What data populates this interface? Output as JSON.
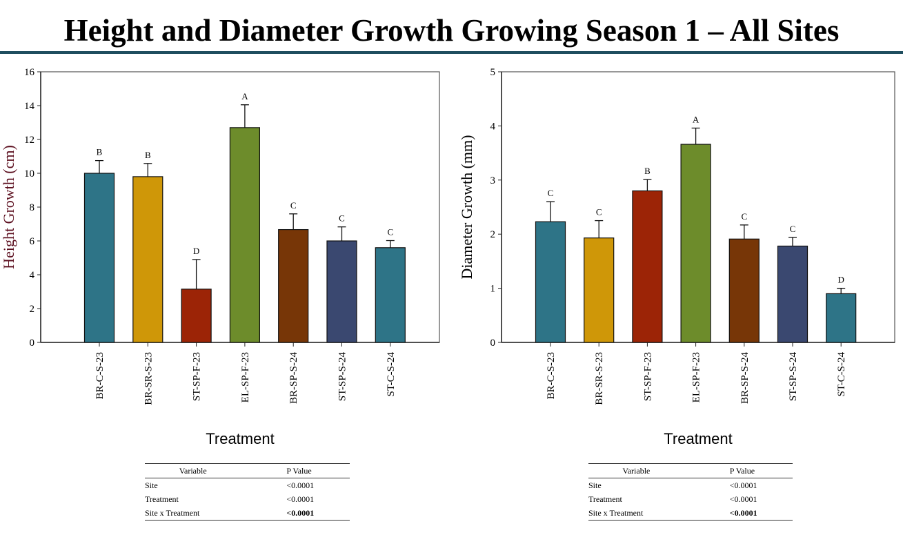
{
  "title": "Height and Diameter Growth Growing Season 1 – All Sites",
  "colors": {
    "rule": "#1f4e5f"
  },
  "chart_data": [
    {
      "type": "bar",
      "categories": [
        "BR-C-S-23",
        "BR-SR-S-23",
        "ST-SP-F-23",
        "EL-SP-F-23",
        "BR-SP-S-24",
        "ST-SP-S-24",
        "ST-C-S-24"
      ],
      "values": [
        10.0,
        9.8,
        3.15,
        12.7,
        6.67,
        6.0,
        5.6
      ],
      "errors": [
        0.75,
        0.78,
        1.75,
        1.35,
        0.93,
        0.83,
        0.42
      ],
      "letters": [
        "B",
        "B",
        "D",
        "A",
        "C",
        "C",
        "C"
      ],
      "colors": [
        "#2e7487",
        "#cf9708",
        "#9c2406",
        "#6d8c2b",
        "#773607",
        "#3a4870",
        "#2e7487"
      ],
      "xlabel": "Treatment",
      "ylabel": "Height Growth (cm)",
      "ylabel_color": "#5c0f1f",
      "ylim": [
        0,
        16
      ],
      "yticks": [
        0,
        2,
        4,
        6,
        8,
        10,
        12,
        14,
        16
      ],
      "grid": false
    },
    {
      "type": "bar",
      "categories": [
        "BR-C-S-23",
        "BR-SR-S-23",
        "ST-SP-F-23",
        "EL-SP-F-23",
        "BR-SP-S-24",
        "ST-SP-S-24",
        "ST-C-S-24"
      ],
      "values": [
        2.23,
        1.93,
        2.8,
        3.66,
        1.91,
        1.78,
        0.9
      ],
      "errors": [
        0.37,
        0.32,
        0.21,
        0.3,
        0.26,
        0.16,
        0.1
      ],
      "letters": [
        "C",
        "C",
        "B",
        "A",
        "C",
        "C",
        "D"
      ],
      "colors": [
        "#2e7487",
        "#cf9708",
        "#9c2406",
        "#6d8c2b",
        "#773607",
        "#3a4870",
        "#2e7487"
      ],
      "xlabel": "Treatment",
      "ylabel": "Diameter Growth (mm)",
      "ylabel_color": "#000000",
      "ylim": [
        0,
        5
      ],
      "yticks": [
        0,
        1,
        2,
        3,
        4,
        5
      ],
      "grid": false
    }
  ],
  "tables": [
    {
      "headers": [
        "Variable",
        "P Value"
      ],
      "rows": [
        [
          "Site",
          "<0.0001"
        ],
        [
          "Treatment",
          "<0.0001"
        ],
        [
          "Site x Treatment",
          "<0.0001"
        ]
      ]
    },
    {
      "headers": [
        "Variable",
        "P Value"
      ],
      "rows": [
        [
          "Site",
          "<0.0001"
        ],
        [
          "Treatment",
          "<0.0001"
        ],
        [
          "Site x Treatment",
          "<0.0001"
        ]
      ]
    }
  ]
}
